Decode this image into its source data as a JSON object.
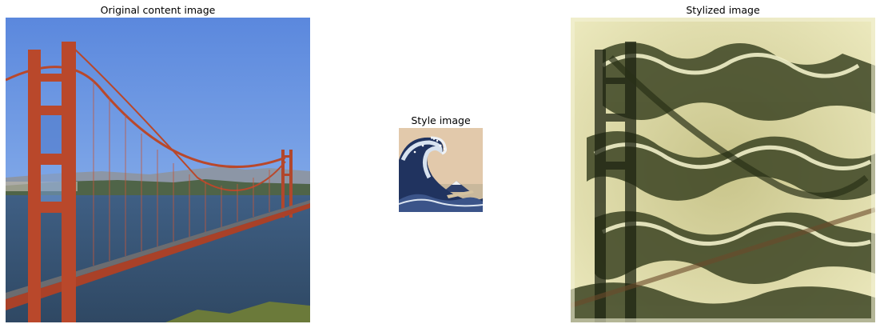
{
  "panels": [
    {
      "title": "Original content image"
    },
    {
      "title": "Style image"
    },
    {
      "title": "Stylized image"
    }
  ]
}
